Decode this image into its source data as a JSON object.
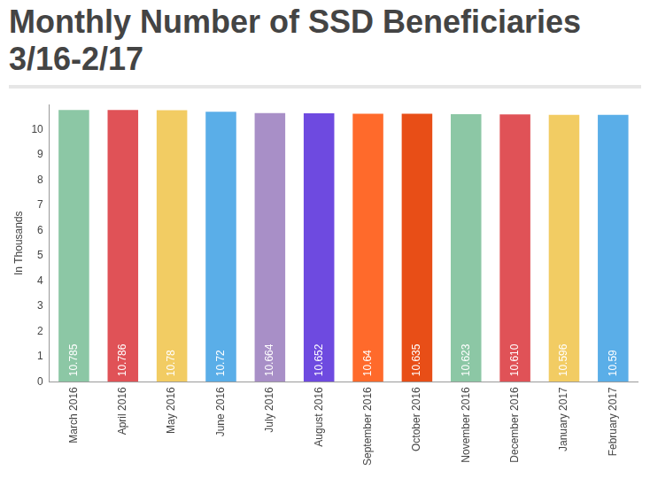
{
  "chart_data": {
    "type": "bar",
    "title": "Monthly Number of SSD Beneficiaries 3/16-2/17",
    "y_label": "In Thousands",
    "categories": [
      "March 2016",
      "April 2016",
      "May 2016",
      "June 2016",
      "July 2016",
      "August 2016",
      "September 2016",
      "October 2016",
      "November 2016",
      "December 2016",
      "January 2017",
      "February 2017"
    ],
    "values": [
      10.785,
      10.786,
      10.78,
      10.72,
      10.664,
      10.652,
      10.64,
      10.635,
      10.623,
      10.61,
      10.596,
      10.59
    ],
    "value_labels": [
      "10.785",
      "10.786",
      "10.78",
      "10.72",
      "10.664",
      "10.652",
      "10.64",
      "10.635",
      "10.623",
      "10.610",
      "10.596",
      "10.59"
    ],
    "colors": [
      "#8cc7a5",
      "#e05257",
      "#f2cc63",
      "#5aaee8",
      "#a88fc7",
      "#6e4ae0",
      "#ff6a2b",
      "#e84e17",
      "#8cc7a5",
      "#e05257",
      "#f2cc63",
      "#5aaee8"
    ],
    "ylim": [
      0,
      11
    ],
    "yticks": [
      0,
      1,
      2,
      3,
      4,
      5,
      6,
      7,
      8,
      9,
      10
    ],
    "grid": false,
    "data_labels": true
  }
}
